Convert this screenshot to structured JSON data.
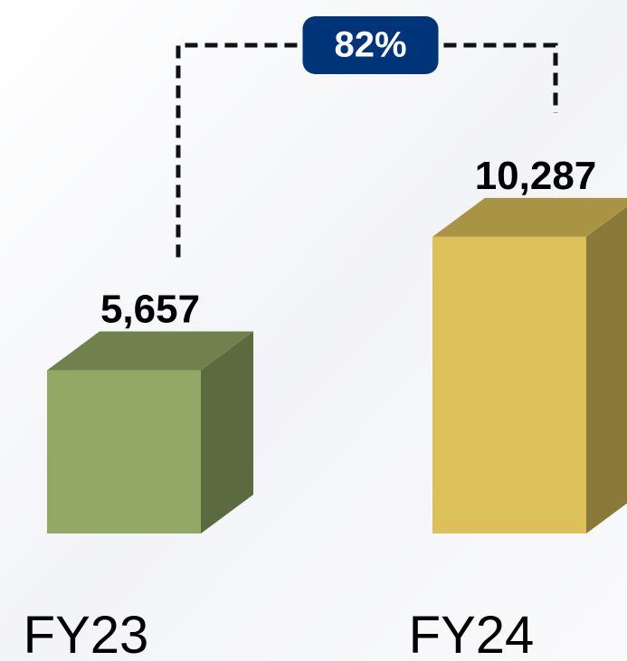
{
  "chart_data": {
    "type": "bar3d",
    "categories": [
      "FY23",
      "FY24"
    ],
    "values": [
      5657,
      10287
    ],
    "value_labels": [
      "5,657",
      "10,287"
    ],
    "colors": [
      "#92a865",
      "#dcc05a"
    ],
    "annotation": "82%"
  }
}
